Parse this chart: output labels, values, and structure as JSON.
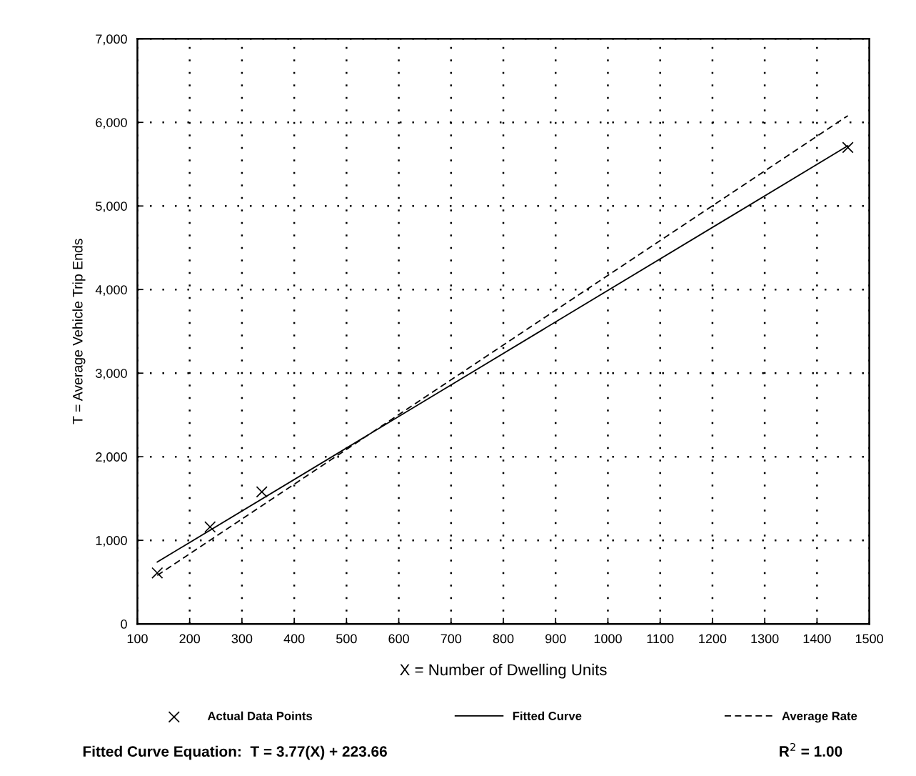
{
  "chart_data": {
    "type": "line",
    "xlabel": "X = Number of Dwelling Units",
    "ylabel": "T = Average Vehicle Trip Ends",
    "xlim": [
      100,
      1500
    ],
    "xticks": [
      100,
      200,
      300,
      400,
      500,
      600,
      700,
      800,
      900,
      1000,
      1100,
      1200,
      1300,
      1400,
      1500
    ],
    "ylim": [
      0,
      7000
    ],
    "yticks": [
      {
        "value": 0,
        "label": "0"
      },
      {
        "value": 1000,
        "label": "1,000"
      },
      {
        "value": 2000,
        "label": "2,000"
      },
      {
        "value": 3000,
        "label": "3,000"
      },
      {
        "value": 4000,
        "label": "4,000"
      },
      {
        "value": 5000,
        "label": "5,000"
      },
      {
        "value": 6000,
        "label": "6,000"
      },
      {
        "value": 7000,
        "label": "7,000"
      }
    ],
    "grid": true,
    "legend": "bottom",
    "series": [
      {
        "name": "Actual Data Points",
        "type": "scatter",
        "marker": "cross",
        "color": "#000000",
        "x": [
          138,
          239,
          338,
          1459
        ],
        "values": [
          610,
          1160,
          1580,
          5700
        ]
      },
      {
        "name": "Fitted Curve",
        "line_style": "solid",
        "color": "#000000",
        "x": [
          138,
          1459
        ],
        "values": [
          740,
          5720
        ]
      },
      {
        "name": "Average Rate",
        "line_style": "dashed",
        "color": "#000000",
        "x": [
          138,
          1459
        ],
        "values": [
          580,
          6080
        ]
      }
    ],
    "annotations": [
      "Fitted Curve Equation:  T = 3.77(X) + 223.66",
      "R$^{2}$ = 1.00"
    ]
  }
}
